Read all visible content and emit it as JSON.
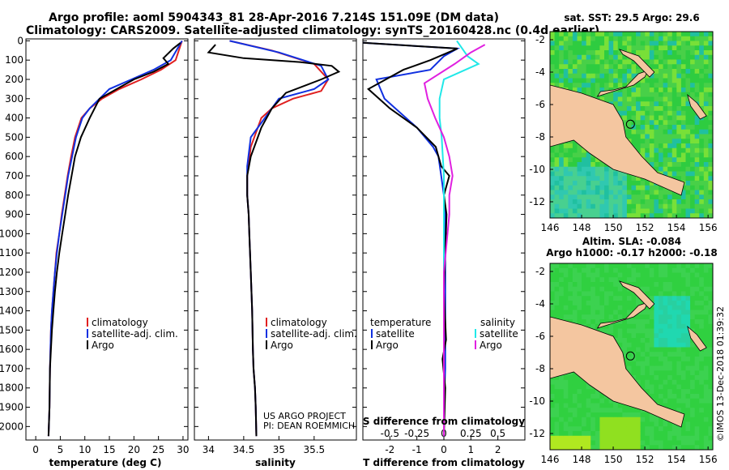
{
  "header": {
    "line1": "Argo profile: aoml 5904343_81 28-Apr-2016 7.214S 151.09E (DM data)",
    "line2": "Climatology: CARS2009. Satellite-adjusted climatology: synTS_20160428.nc (0.4d earlier)"
  },
  "credit": {
    "project": "US ARGO PROJECT",
    "pi": "PI: DEAN ROEMMICH",
    "imos": "©IMOS 13-Dec-2018 01:39:32"
  },
  "colors": {
    "climatology": "#e02020",
    "satellite": "#1030e0",
    "argo": "#000000",
    "sal_satellite": "#20e8e8",
    "sal_argo": "#e020e0",
    "land": "#f4c6a0"
  },
  "chart_data": [
    {
      "type": "line",
      "xlabel": "temperature (deg C)",
      "xlim": [
        -2,
        31
      ],
      "xticks": [
        0,
        5,
        10,
        15,
        20,
        25,
        30
      ],
      "ylim": [
        2070,
        -10
      ],
      "yticks": [
        0,
        100,
        200,
        300,
        400,
        500,
        600,
        700,
        800,
        900,
        1000,
        1100,
        1200,
        1300,
        1400,
        1500,
        1600,
        1700,
        1800,
        1900,
        2000
      ],
      "legend": [
        "climatology",
        "satellite-adj. clim.",
        "Argo"
      ],
      "series": [
        {
          "name": "climatology",
          "color": "#e02020",
          "x": [
            29.8,
            28.5,
            25.5,
            21.5,
            17.0,
            13.5,
            11.0,
            9.3,
            8.0,
            7.2,
            6.5,
            5.9,
            5.3,
            4.8,
            4.2,
            3.9,
            3.6,
            3.3,
            3.1,
            2.9,
            2.8,
            2.6
          ],
          "y": [
            0,
            100,
            150,
            200,
            250,
            300,
            350,
            400,
            500,
            600,
            700,
            800,
            900,
            1000,
            1100,
            1200,
            1300,
            1400,
            1500,
            1700,
            1900,
            2050
          ]
        },
        {
          "name": "satellite-adj. clim.",
          "color": "#1030e0",
          "x": [
            29.8,
            27.5,
            24.0,
            19.5,
            15.0,
            11.0,
            9.5,
            8.2,
            7.4,
            6.6,
            6.0,
            5.4,
            4.8,
            4.3,
            3.9,
            3.6,
            3.3,
            3.1,
            2.9,
            2.8,
            2.6
          ],
          "y": [
            0,
            100,
            150,
            200,
            250,
            350,
            400,
            500,
            600,
            700,
            800,
            900,
            1000,
            1100,
            1200,
            1300,
            1400,
            1500,
            1700,
            1900,
            2050
          ]
        },
        {
          "name": "Argo",
          "color": "#000000",
          "x": [
            29.5,
            28.0,
            26.0,
            27.0,
            24.0,
            20.0,
            16.5,
            13.0,
            11.0,
            9.2,
            8.0,
            7.3,
            6.6,
            6.0,
            5.4,
            4.8,
            4.3,
            3.9,
            3.6,
            3.3,
            3.1,
            2.9,
            2.8,
            2.6
          ],
          "y": [
            10,
            40,
            90,
            120,
            160,
            200,
            250,
            300,
            400,
            500,
            600,
            700,
            800,
            900,
            1000,
            1100,
            1200,
            1300,
            1400,
            1500,
            1600,
            1700,
            1900,
            2050
          ]
        }
      ]
    },
    {
      "type": "line",
      "xlabel": "salinity",
      "xlim": [
        33.8,
        36.1
      ],
      "xticks": [
        34,
        34.5,
        35,
        35.5
      ],
      "xticklabels": [
        "34",
        "34.5",
        "35",
        "35.5"
      ],
      "ylim": [
        2070,
        -10
      ],
      "legend": [
        "climatology",
        "satellite-adj. clim.",
        "Argo"
      ],
      "series": [
        {
          "name": "climatology",
          "color": "#e02020",
          "x": [
            34.3,
            34.9,
            35.5,
            35.7,
            35.6,
            35.2,
            34.9,
            34.75,
            34.6,
            34.55,
            34.55,
            34.57,
            34.58,
            34.6,
            34.62,
            34.63,
            34.64,
            34.66,
            34.67,
            34.68
          ],
          "y": [
            0,
            50,
            120,
            200,
            260,
            300,
            350,
            400,
            550,
            700,
            800,
            900,
            1000,
            1200,
            1400,
            1600,
            1700,
            1800,
            1900,
            2050
          ]
        },
        {
          "name": "satellite-adj. clim.",
          "color": "#1030e0",
          "x": [
            34.3,
            35.0,
            35.6,
            35.7,
            35.5,
            35.0,
            34.8,
            34.6,
            34.55,
            34.55,
            34.57,
            34.58,
            34.6,
            34.62,
            34.63,
            34.64,
            34.66,
            34.67,
            34.68
          ],
          "y": [
            0,
            60,
            130,
            200,
            250,
            300,
            400,
            500,
            650,
            800,
            900,
            1000,
            1200,
            1400,
            1600,
            1700,
            1800,
            1900,
            2050
          ]
        },
        {
          "name": "Argo",
          "color": "#000000",
          "x": [
            34.1,
            34.0,
            34.5,
            35.3,
            35.75,
            35.85,
            35.6,
            35.1,
            34.9,
            34.75,
            34.7,
            34.6,
            34.55,
            34.55,
            34.57,
            34.58,
            34.6,
            34.62,
            34.63,
            34.64,
            34.66,
            34.67,
            34.68
          ],
          "y": [
            20,
            60,
            90,
            110,
            130,
            160,
            200,
            270,
            350,
            450,
            500,
            600,
            700,
            800,
            900,
            1000,
            1200,
            1400,
            1600,
            1700,
            1800,
            1900,
            2050
          ]
        }
      ]
    },
    {
      "type": "line",
      "xlabel": "T difference from climatology",
      "xlabel_top": "S difference from climatology",
      "xlim": [
        -3.0,
        3.0
      ],
      "xticks": [
        -2,
        -1,
        0,
        1,
        2
      ],
      "sticks": [
        -0.5,
        -0.25,
        0,
        0.25,
        0.5
      ],
      "sticklabels": [
        "-0.5",
        "-0.25",
        "0",
        "0.25",
        "0.5"
      ],
      "ylim": [
        2070,
        -10
      ],
      "legend_left": {
        "title": "temperature",
        "items": [
          "satellite",
          "Argo"
        ]
      },
      "legend_right": {
        "title": "salinity",
        "items": [
          "satellite",
          "Argo"
        ]
      },
      "series": [
        {
          "name": "T satellite",
          "color": "#1030e0",
          "x": [
            -3.0,
            0.5,
            0.0,
            -0.5,
            -2.5,
            -2.2,
            -1.0,
            -0.4,
            -0.2,
            -0.1,
            0.0,
            0.05,
            0.05,
            0.05,
            0.05,
            0.05,
            0.0,
            0.0
          ],
          "y": [
            10,
            40,
            80,
            150,
            200,
            300,
            450,
            550,
            600,
            700,
            800,
            900,
            1100,
            1300,
            1500,
            1700,
            1900,
            2050
          ]
        },
        {
          "name": "T Argo",
          "color": "#000000",
          "x": [
            -3.0,
            0.5,
            -0.5,
            -1.5,
            -2.8,
            -2.0,
            -1.0,
            -0.3,
            -0.1,
            0.2,
            0.0,
            0.1,
            0.05,
            0.0,
            0.08,
            -0.05,
            0.05,
            0.0
          ],
          "y": [
            10,
            40,
            100,
            150,
            250,
            350,
            450,
            550,
            650,
            700,
            800,
            900,
            1100,
            1300,
            1550,
            1650,
            1800,
            2050
          ]
        },
        {
          "name": "S satellite",
          "color": "#20e8e8",
          "x": [
            0.12,
            0.22,
            0.32,
            0.0,
            -0.04,
            -0.04,
            -0.02,
            0.0,
            0.0,
            0.0,
            0.0,
            0.0,
            0.0
          ],
          "y": [
            0,
            80,
            120,
            200,
            300,
            400,
            500,
            700,
            900,
            1200,
            1500,
            1800,
            2050
          ]
        },
        {
          "name": "S Argo",
          "color": "#e020e0",
          "x": [
            0.38,
            0.25,
            0.1,
            -0.18,
            -0.15,
            -0.08,
            0.0,
            0.05,
            0.08,
            0.05,
            0.05,
            0.0,
            0.0,
            0.0
          ],
          "y": [
            20,
            60,
            120,
            220,
            300,
            400,
            500,
            600,
            700,
            800,
            900,
            1200,
            1600,
            2050
          ]
        }
      ]
    },
    {
      "type": "heatmap",
      "title": "sat. SST: 29.5 Argo: 29.6",
      "xlim": [
        146,
        156.3
      ],
      "xticks": [
        146,
        148,
        150,
        152,
        154,
        156
      ],
      "ylim": [
        -13,
        -1.5
      ],
      "yticks": [
        -2,
        -4,
        -6,
        -8,
        -10,
        -12
      ],
      "marker": {
        "lon": 151.09,
        "lat": -7.214
      }
    },
    {
      "type": "heatmap",
      "title": "Altim. SLA: -0.084",
      "subtitle": "Argo h1000: -0.17 h2000: -0.18",
      "xlim": [
        146,
        156.3
      ],
      "xticks": [
        146,
        148,
        150,
        152,
        154,
        156
      ],
      "ylim": [
        -13,
        -1.5
      ],
      "yticks": [
        -2,
        -4,
        -6,
        -8,
        -10,
        -12
      ],
      "marker": {
        "lon": 151.09,
        "lat": -7.214
      }
    }
  ]
}
